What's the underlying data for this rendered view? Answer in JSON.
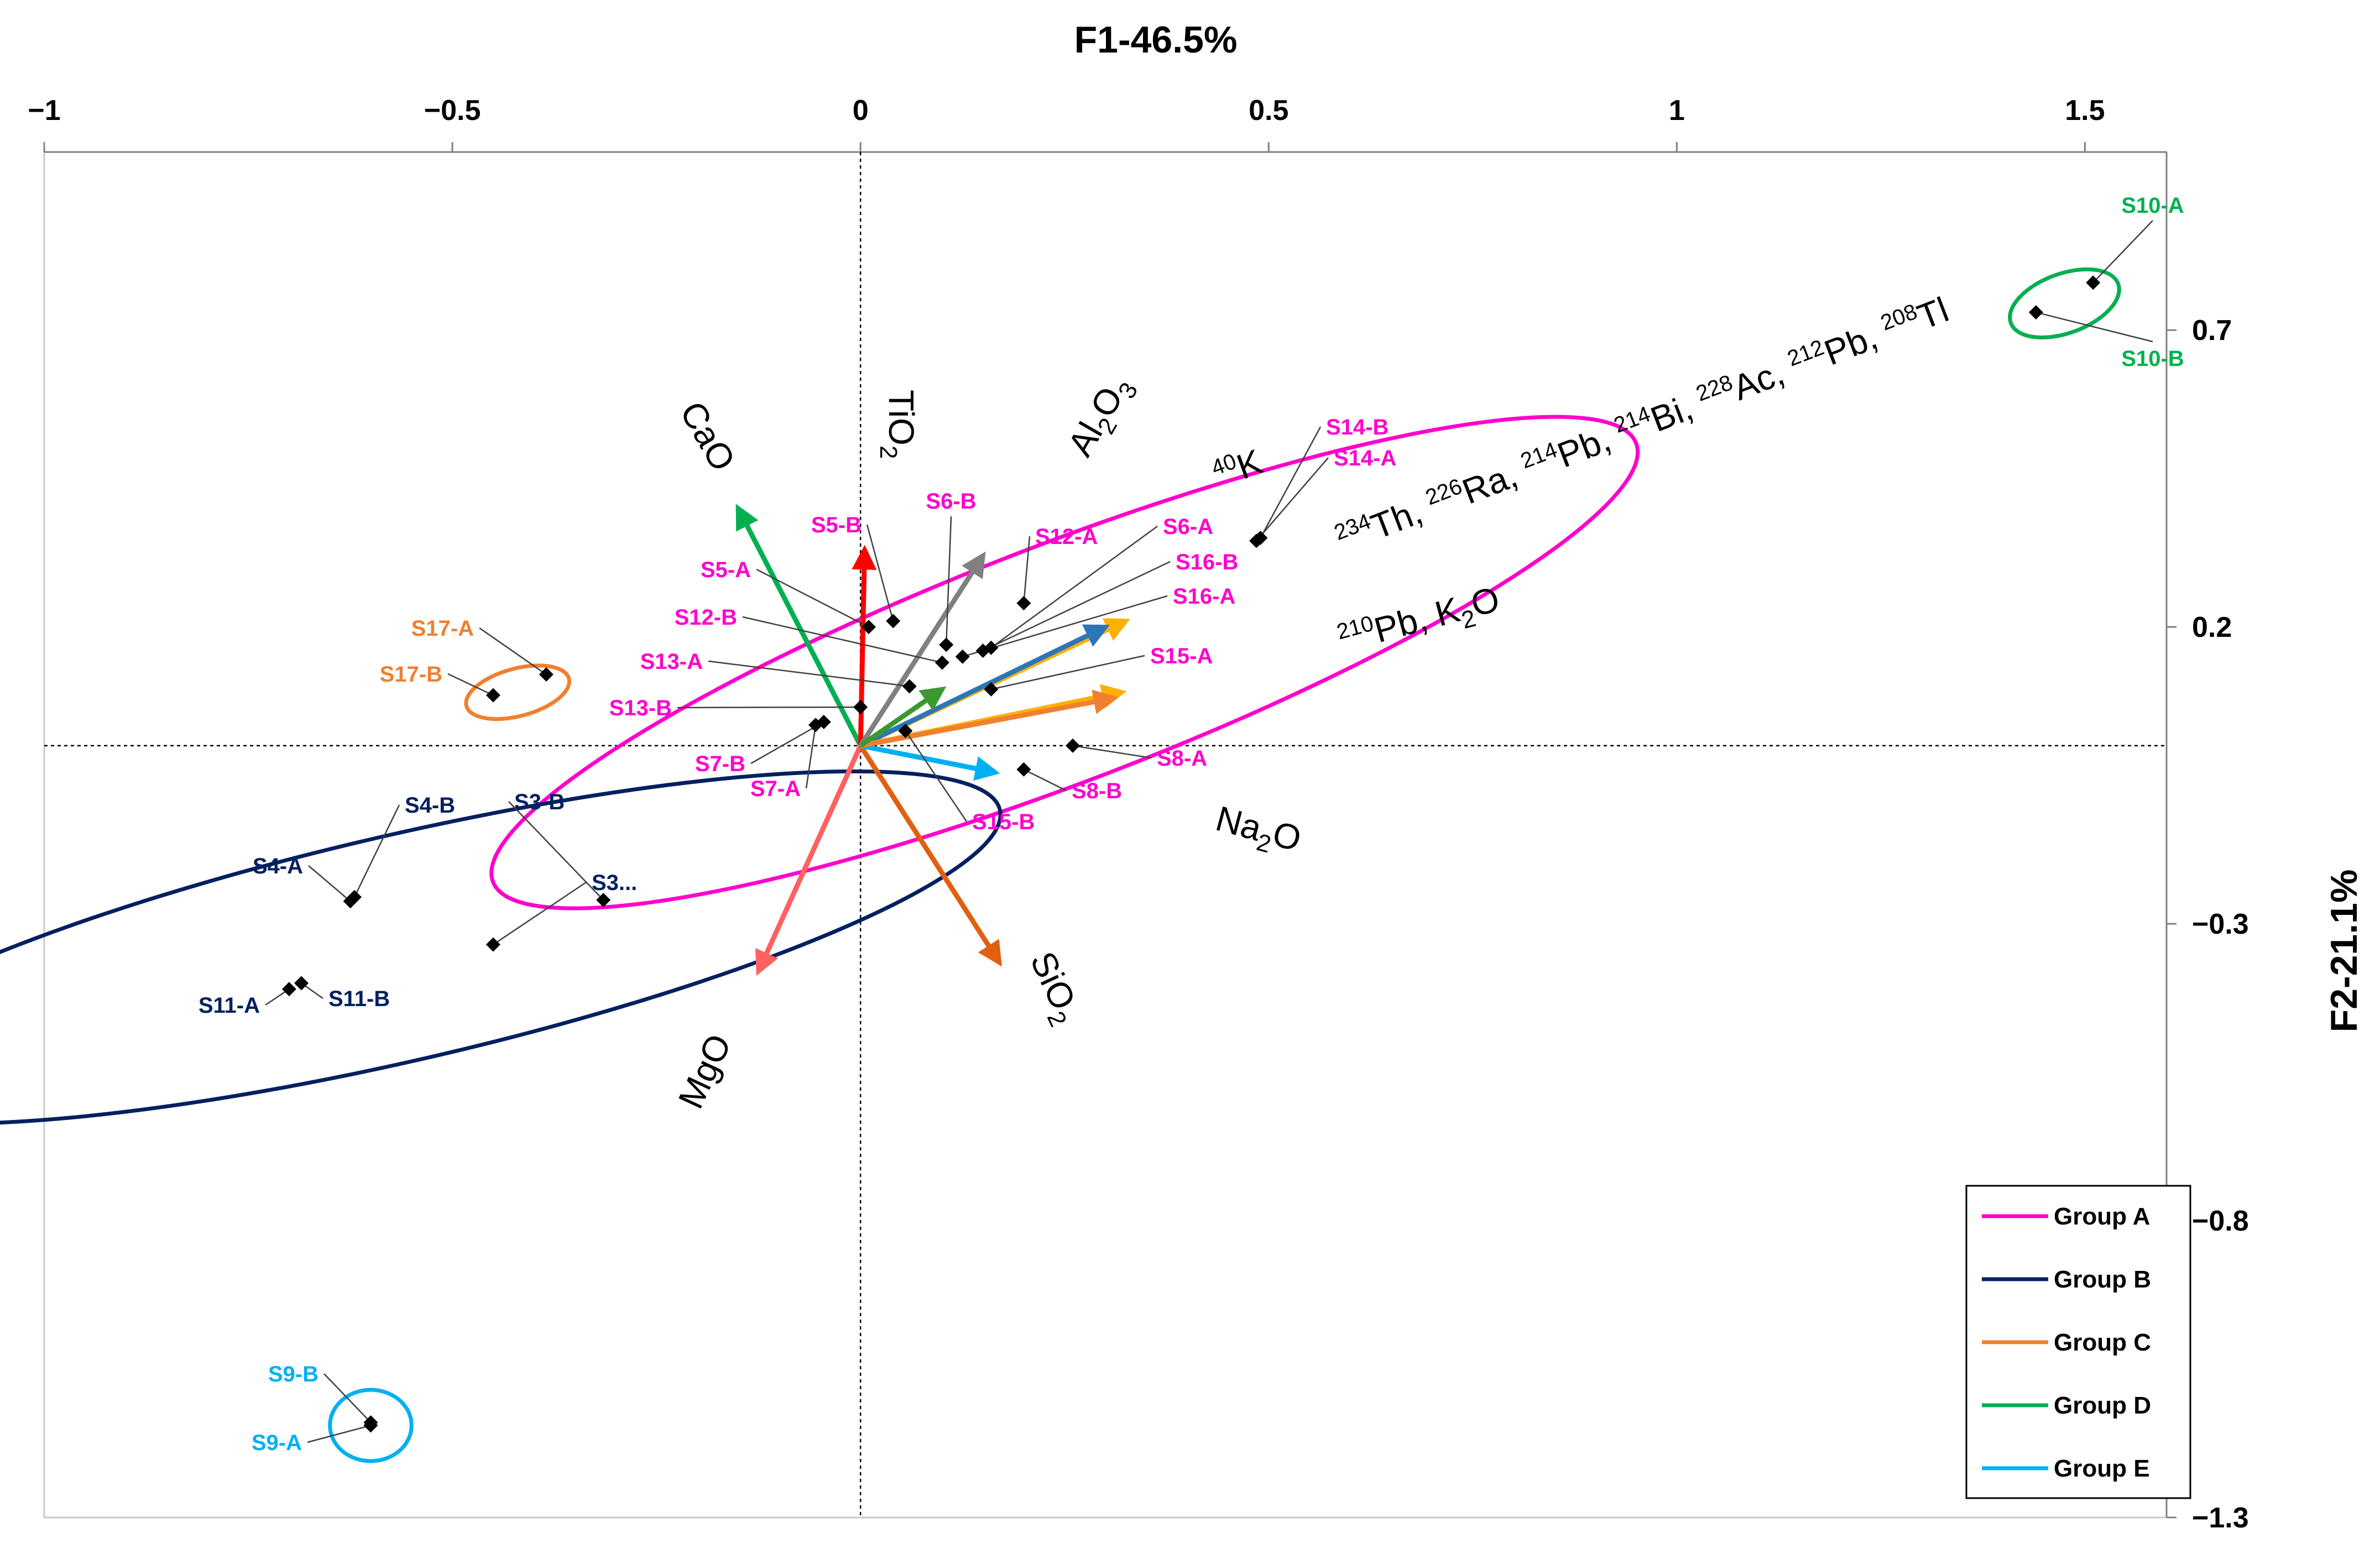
{
  "chart_data": {
    "type": "scatter",
    "subtype": "pca-biplot",
    "xlabel": "F1-46.5%",
    "ylabel": "F2-21.1%",
    "xlim": [
      -1,
      1.6
    ],
    "ylim": [
      -1.3,
      1.0
    ],
    "x_ticks": [
      -1,
      -0.5,
      0,
      0.5,
      1,
      1.5
    ],
    "x_tick_labels": [
      "−1",
      "−0.5",
      "0",
      "0.5",
      "1",
      "1.5"
    ],
    "y_ticks": [
      0.7,
      0.2,
      -0.3,
      -0.8,
      -1.3
    ],
    "y_tick_labels": [
      "0.7",
      "0.2",
      "−0.3",
      "−0.8",
      "−1.3"
    ],
    "groups": [
      {
        "name": "Group A",
        "color": "#FF00CC"
      },
      {
        "name": "Group B",
        "color": "#002060"
      },
      {
        "name": "Group C",
        "color": "#F08030"
      },
      {
        "name": "Group D",
        "color": "#00B050"
      },
      {
        "name": "Group E",
        "color": "#00B0F0"
      }
    ],
    "ellipses": [
      {
        "group": "Group A",
        "cx": 0.25,
        "cy": 0.14,
        "rx": 0.75,
        "ry": 0.2,
        "angle": 21
      },
      {
        "group": "Group B",
        "cx": -0.56,
        "cy": -0.34,
        "rx": 0.75,
        "ry": 0.19,
        "angle": 13
      },
      {
        "group": "Group C",
        "cx": -0.42,
        "cy": 0.09,
        "rx": 0.065,
        "ry": 0.04,
        "angle": 15
      },
      {
        "group": "Group D",
        "cx": 1.475,
        "cy": 0.745,
        "rx": 0.07,
        "ry": 0.05,
        "angle": 20
      },
      {
        "group": "Group E",
        "cx": -0.6,
        "cy": -1.145,
        "rx": 0.05,
        "ry": 0.06,
        "angle": 0
      }
    ],
    "points": [
      {
        "name": "S10-A",
        "group": "Group D",
        "x": 1.51,
        "y": 0.78
      },
      {
        "name": "S10-B",
        "group": "Group D",
        "x": 1.44,
        "y": 0.73
      },
      {
        "name": "S14-B",
        "group": "Group A",
        "x": 0.49,
        "y": 0.35
      },
      {
        "name": "S14-A",
        "group": "Group A",
        "x": 0.485,
        "y": 0.345
      },
      {
        "name": "S5-B",
        "group": "Group A",
        "x": 0.04,
        "y": 0.21
      },
      {
        "name": "S5-A",
        "group": "Group A",
        "x": 0.01,
        "y": 0.2
      },
      {
        "name": "S6-B",
        "group": "Group A",
        "x": 0.105,
        "y": 0.17
      },
      {
        "name": "S6-A",
        "group": "Group A",
        "x": 0.16,
        "y": 0.165
      },
      {
        "name": "S12-A",
        "group": "Group A",
        "x": 0.2,
        "y": 0.24
      },
      {
        "name": "S16-B",
        "group": "Group A",
        "x": 0.15,
        "y": 0.16
      },
      {
        "name": "S16-A",
        "group": "Group A",
        "x": 0.125,
        "y": 0.15
      },
      {
        "name": "S12-B",
        "group": "Group A",
        "x": 0.1,
        "y": 0.14
      },
      {
        "name": "S13-A",
        "group": "Group A",
        "x": 0.06,
        "y": 0.1
      },
      {
        "name": "S15-A",
        "group": "Group A",
        "x": 0.16,
        "y": 0.095
      },
      {
        "name": "S13-B",
        "group": "Group A",
        "x": 0.0,
        "y": 0.065
      },
      {
        "name": "S7-B",
        "group": "Group A",
        "x": -0.045,
        "y": 0.04
      },
      {
        "name": "S7-A",
        "group": "Group A",
        "x": -0.055,
        "y": 0.035
      },
      {
        "name": "S15-B",
        "group": "Group A",
        "x": 0.055,
        "y": 0.025
      },
      {
        "name": "S8-A",
        "group": "Group A",
        "x": 0.26,
        "y": 0.0
      },
      {
        "name": "S8-B",
        "group": "Group A",
        "x": 0.2,
        "y": -0.04
      },
      {
        "name": "S17-A",
        "group": "Group C",
        "x": -0.385,
        "y": 0.12
      },
      {
        "name": "S17-B",
        "group": "Group C",
        "x": -0.45,
        "y": 0.085
      },
      {
        "name": "S4-B",
        "group": "Group B",
        "x": -0.62,
        "y": -0.255
      },
      {
        "name": "S4-A",
        "group": "Group B",
        "x": -0.625,
        "y": -0.262
      },
      {
        "name": "S3-B",
        "group": "Group B",
        "x": -0.315,
        "y": -0.26
      },
      {
        "name": "S3...",
        "group": "Group B",
        "x": -0.45,
        "y": -0.335
      },
      {
        "name": "S11-A",
        "group": "Group B",
        "x": -0.7,
        "y": -0.41
      },
      {
        "name": "S11-B",
        "group": "Group B",
        "x": -0.685,
        "y": -0.4
      },
      {
        "name": "S9-B",
        "group": "Group E",
        "x": -0.6,
        "y": -1.14
      },
      {
        "name": "S9-A",
        "group": "Group E",
        "x": -0.6,
        "y": -1.145
      }
    ],
    "loadings": [
      {
        "name": "CaO",
        "x": -0.15,
        "y": 0.4,
        "color": "#00B050"
      },
      {
        "name": "TiO2",
        "x": 0.005,
        "y": 0.33,
        "color": "#FF0000"
      },
      {
        "name": "Al2O3",
        "x": 0.15,
        "y": 0.32,
        "color": "#808080"
      },
      {
        "name": "MgO",
        "x": -0.125,
        "y": -0.38,
        "color": "#FF6060"
      },
      {
        "name": "SiO2",
        "x": 0.17,
        "y": -0.365,
        "color": "#E06010"
      },
      {
        "name": "Na2O",
        "x": 0.165,
        "y": -0.045,
        "color": "#00B0F0"
      },
      {
        "name": "40K",
        "x": 0.325,
        "y": 0.21,
        "color": "#FFB000"
      },
      {
        "name": "234Th, 226Ra, 214Pb, 214Bi, 228Ac, 212Pb, 208Tl",
        "x": 0.3,
        "y": 0.2,
        "color": "#2E75B6"
      },
      {
        "name": "210Pb, K2O",
        "x": 0.32,
        "y": 0.09,
        "color": "#FFB000"
      },
      {
        "name": "",
        "x": 0.31,
        "y": 0.08,
        "color": "#F08030"
      },
      {
        "name": "",
        "x": 0.1,
        "y": 0.095,
        "color": "#3A9A30"
      }
    ],
    "variable_labels": {
      "CaO": "CaO",
      "TiO2": [
        "TiO",
        "2"
      ],
      "Al2O3": [
        "Al",
        "2",
        "O",
        "3"
      ],
      "MgO": "MgO",
      "SiO2": [
        "SiO",
        "2"
      ],
      "Na2O": [
        "Na",
        "2",
        "O"
      ],
      "K40": [
        "40",
        "K"
      ],
      "radionuclides": [
        [
          "234",
          "Th, "
        ],
        [
          "226",
          "Ra, "
        ],
        [
          "214",
          "Pb, "
        ],
        [
          "214",
          "Bi, "
        ],
        [
          "228",
          "Ac, "
        ],
        [
          "212",
          "Pb, "
        ],
        [
          "208",
          "Tl"
        ]
      ],
      "Pb210": [
        "210",
        "Pb, K",
        "2",
        "O"
      ]
    },
    "legend": {
      "position": "bottom-right",
      "entries": [
        "Group A",
        "Group B",
        "Group C",
        "Group D",
        "Group E"
      ]
    }
  }
}
